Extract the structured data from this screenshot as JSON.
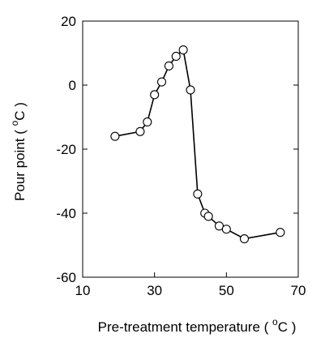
{
  "chart_data": {
    "type": "line",
    "xlabel": {
      "prefix": "Pre-treatment  temperature  ( ",
      "sup": "o",
      "suffix": "C )"
    },
    "ylabel": {
      "prefix": "Pour  point  ( ",
      "sup": "o",
      "suffix": "C )"
    },
    "xlim": [
      10,
      70
    ],
    "ylim": [
      -60,
      20
    ],
    "x_ticks": [
      10,
      30,
      50,
      70
    ],
    "y_ticks": [
      -60,
      -40,
      -20,
      0,
      20
    ],
    "x_tick_labels": [
      "10",
      "30",
      "50",
      "70"
    ],
    "y_tick_labels": [
      "-60",
      "-40",
      "-20",
      "0",
      "20"
    ],
    "grid": false,
    "marker": "open-circle",
    "line_color": "#000000",
    "series": [
      {
        "x": [
          19,
          26,
          28,
          30,
          32,
          34,
          36,
          38,
          40,
          42,
          44,
          45,
          48,
          50,
          55,
          65
        ],
        "y": [
          -16,
          -14.5,
          -11.5,
          -3,
          1,
          6,
          9,
          11,
          -1.5,
          -34,
          -40,
          -41,
          -44,
          -45,
          -48,
          -46
        ]
      }
    ]
  }
}
